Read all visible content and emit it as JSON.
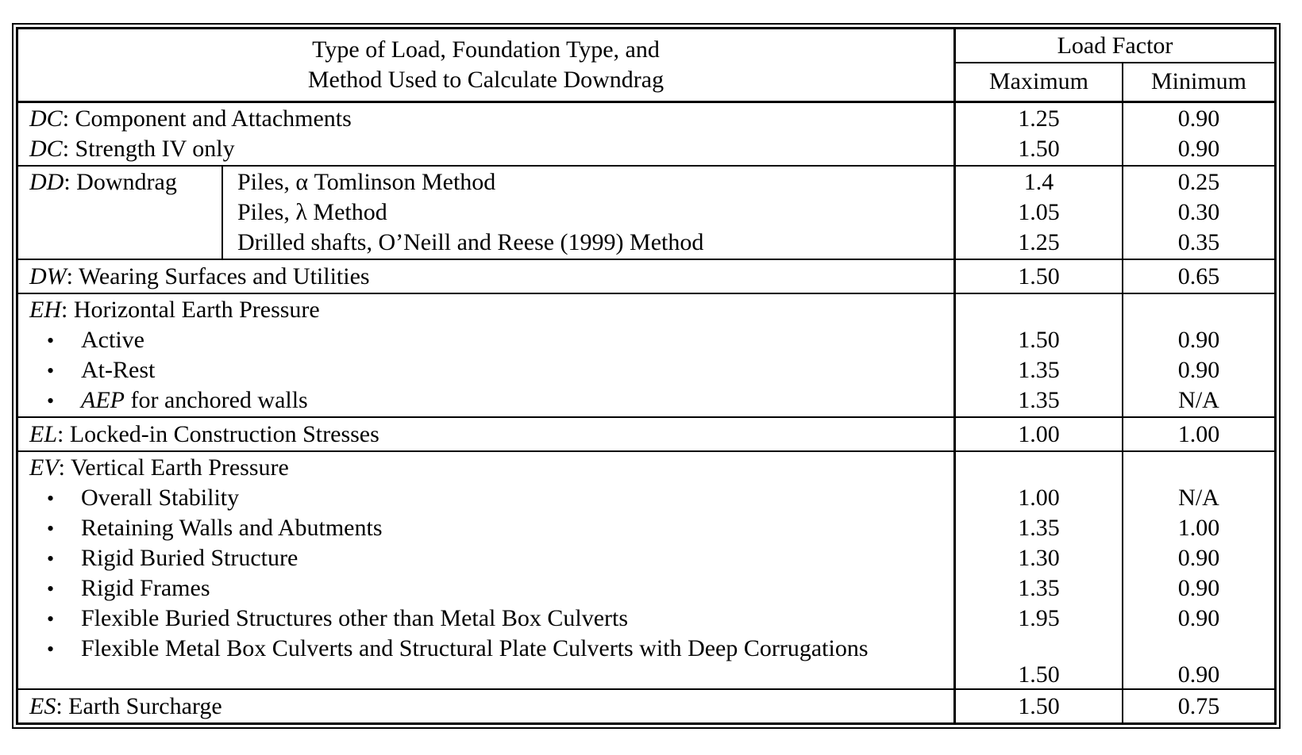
{
  "table": {
    "bullet": "•",
    "header": {
      "desc_line1": "Type of Load, Foundation Type, and",
      "desc_line2": "Method Used to Calculate Downdrag",
      "load_factor": "Load Factor",
      "max_label": "Maximum",
      "min_label": "Minimum"
    },
    "dc": {
      "line1": {
        "prefix": "DC",
        "text": ": Component and Attachments",
        "max": "1.25",
        "min": "0.90"
      },
      "line2": {
        "prefix": "DC",
        "text": ": Strength IV only",
        "max": "1.50",
        "min": "0.90"
      }
    },
    "dd": {
      "prefix": "DD",
      "text": ": Downdrag",
      "m1": {
        "text": "Piles, α Tomlinson Method",
        "max": "1.4",
        "min": "0.25"
      },
      "m2": {
        "text": "Piles, λ Method",
        "max": "1.05",
        "min": "0.30"
      },
      "m3": {
        "text": "Drilled shafts, O’Neill and Reese (1999) Method",
        "max": "1.25",
        "min": "0.35"
      }
    },
    "dw": {
      "prefix": "DW",
      "text": ": Wearing Surfaces and Utilities",
      "max": "1.50",
      "min": "0.65"
    },
    "eh": {
      "title": {
        "prefix": "EH",
        "text": ": Horizontal Earth Pressure"
      },
      "b1": {
        "text": "Active",
        "max": "1.50",
        "min": "0.90"
      },
      "b2": {
        "text": "At-Rest",
        "max": "1.35",
        "min": "0.90"
      },
      "b3": {
        "prefix": "AEP",
        "text": " for anchored walls",
        "max": "1.35",
        "min": "N/A"
      }
    },
    "el": {
      "prefix": "EL",
      "text": ": Locked-in Construction Stresses",
      "max": "1.00",
      "min": "1.00"
    },
    "ev": {
      "title": {
        "prefix": "EV",
        "text": ": Vertical Earth Pressure"
      },
      "b1": {
        "text": "Overall Stability",
        "max": "1.00",
        "min": "N/A"
      },
      "b2": {
        "text": "Retaining Walls and Abutments",
        "max": "1.35",
        "min": "1.00"
      },
      "b3": {
        "text": "Rigid Buried Structure",
        "max": "1.30",
        "min": "0.90"
      },
      "b4": {
        "text": "Rigid Frames",
        "max": "1.35",
        "min": "0.90"
      },
      "b5": {
        "text": "Flexible Buried Structures other than Metal Box Culverts",
        "max": "1.95",
        "min": "0.90"
      },
      "b6": {
        "text": "Flexible Metal Box Culverts and Structural Plate Culverts with Deep Corrugations",
        "max": "1.50",
        "min": "0.90"
      }
    },
    "es": {
      "prefix": "ES",
      "text": ": Earth Surcharge",
      "max": "1.50",
      "min": "0.75"
    }
  }
}
